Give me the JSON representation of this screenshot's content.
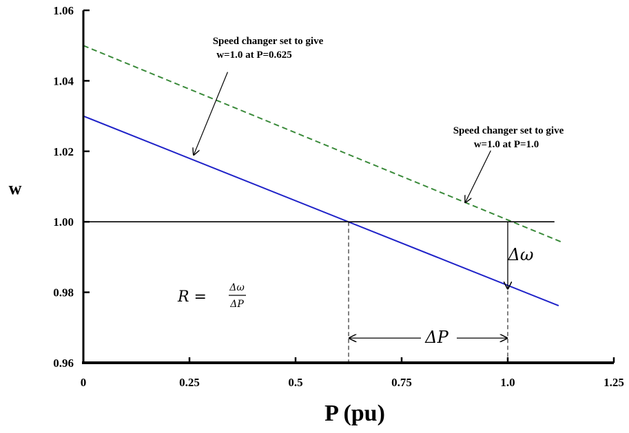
{
  "chart_data": {
    "type": "line",
    "xlabel": "P (pu)",
    "ylabel": "w",
    "xlim": [
      0,
      1.25
    ],
    "ylim": [
      0.96,
      1.06
    ],
    "xticks": [
      0,
      0.25,
      0.5,
      0.75,
      1.0,
      1.25
    ],
    "xtick_labels": [
      "0",
      "0.25",
      "0.5",
      "0.75",
      "1.0",
      "1.25"
    ],
    "yticks": [
      0.96,
      0.98,
      1.0,
      1.02,
      1.04,
      1.06
    ],
    "ytick_labels": [
      "0.96",
      "0.98",
      "1.00",
      "1.02",
      "1.04",
      "1.06"
    ],
    "grid": false,
    "series": [
      {
        "style": "solid",
        "color": "#1f22c8",
        "x": [
          0,
          1.12
        ],
        "y": [
          1.03,
          0.9762
        ]
      },
      {
        "style": "dashed",
        "color": "#3a8a3a",
        "x": [
          0,
          1.13
        ],
        "y": [
          1.05,
          0.9941
        ]
      },
      {
        "style": "solid",
        "color": "#000000",
        "x": [
          0,
          1.11
        ],
        "y": [
          1.0,
          1.0
        ]
      }
    ],
    "annotations": {
      "speed_changer_1": {
        "line1": "Speed changer set to give",
        "line2": "w=1.0 at P=0.625",
        "arrow_from": [
          0.34,
          1.0425
        ],
        "arrow_to": [
          0.26,
          1.019
        ]
      },
      "speed_changer_2": {
        "line1": "Speed changer set to give",
        "line2": "w=1.0 at P=1.0",
        "arrow_from": [
          0.96,
          1.0202
        ],
        "arrow_to": [
          0.9,
          1.0055
        ]
      },
      "delta_omega": {
        "label": "Δω",
        "x": 1.0,
        "y_top": 1.0,
        "y_bottom": 0.981
      },
      "delta_p": {
        "label": "ΔP",
        "x_left": 0.625,
        "x_right": 1.0,
        "y": 0.967
      },
      "formula": {
        "lhs": "R =",
        "numerator": "Δω",
        "denominator": "ΔP"
      },
      "drop_lines": [
        {
          "x": 0.625,
          "y_from": 1.0,
          "y_to": 0.96
        },
        {
          "x": 1.0,
          "y_from": 1.0,
          "y_to": 0.96
        }
      ]
    }
  }
}
